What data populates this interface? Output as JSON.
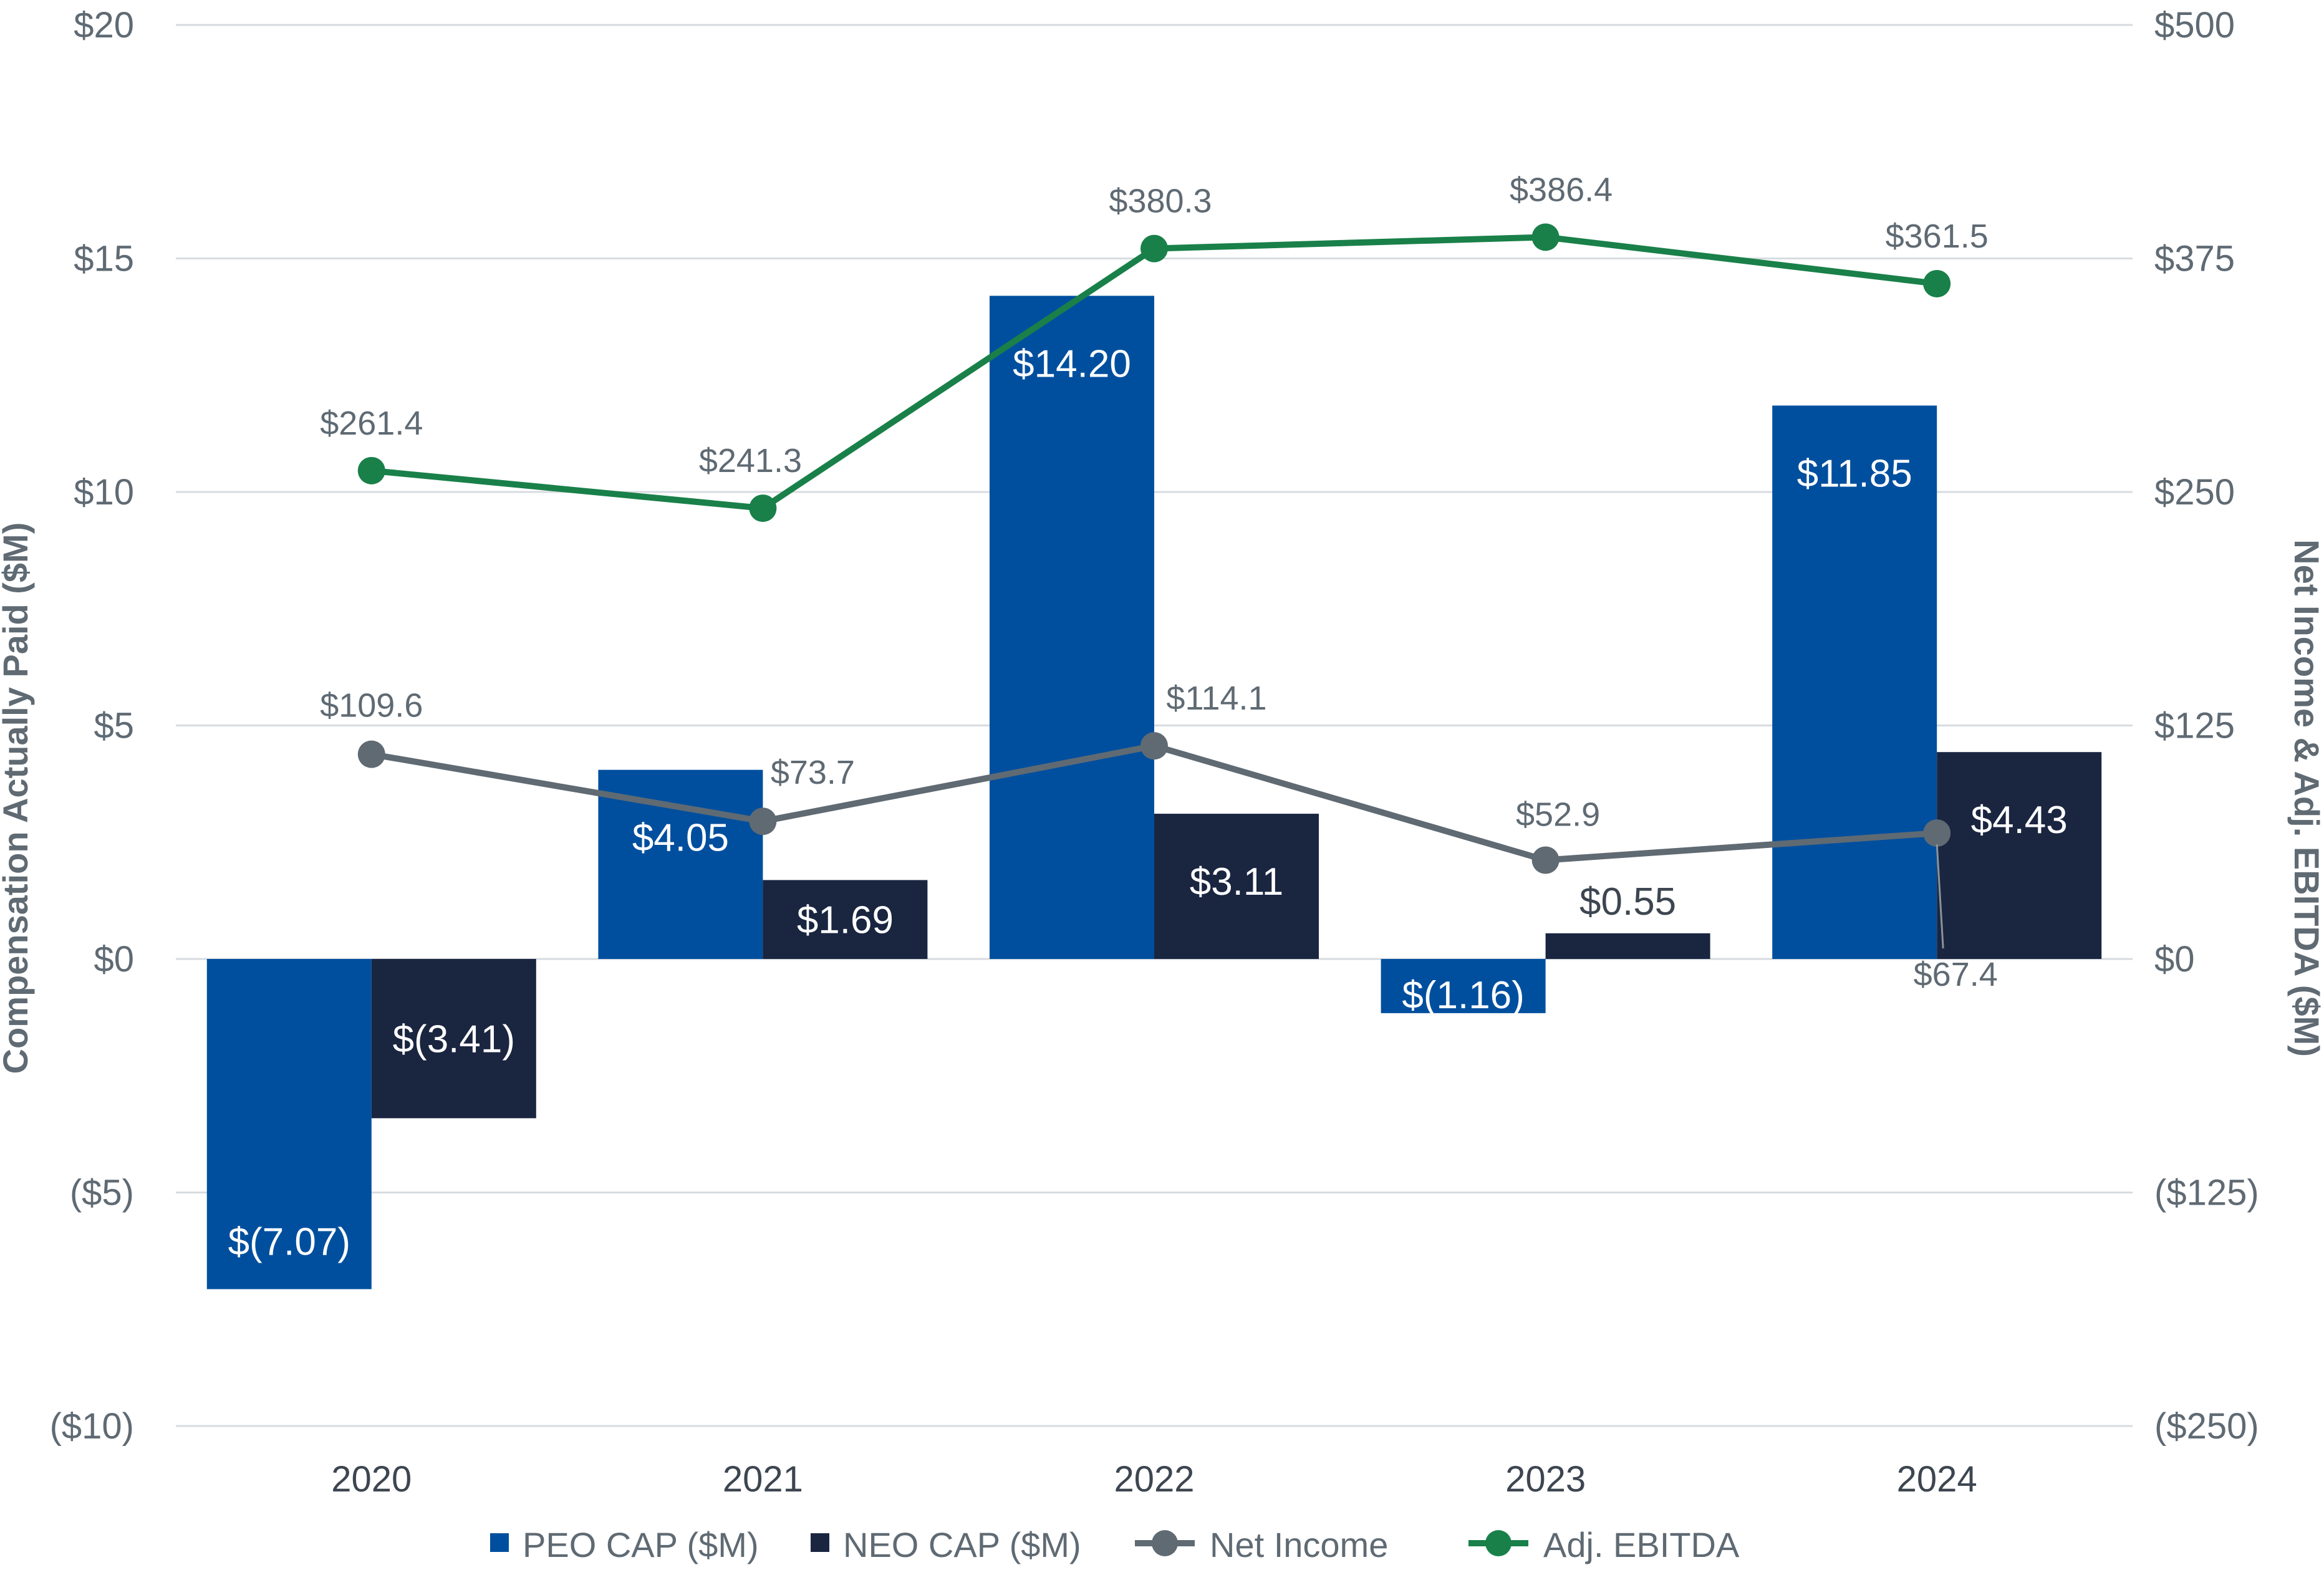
{
  "chart_data": {
    "type": "bar",
    "categories": [
      "2020",
      "2021",
      "2022",
      "2023",
      "2024"
    ],
    "y_left": {
      "label": "Compensation Actually Paid ($M)",
      "range": [
        -10,
        20
      ],
      "ticks": [
        20,
        15,
        10,
        5,
        0,
        -5,
        -10
      ],
      "tick_labels": [
        "$20",
        "$15",
        "$10",
        "$5",
        "$0",
        "($5)",
        "($10)"
      ]
    },
    "y_right": {
      "label": "Net Income & Adj. EBITDA ($M)",
      "range": [
        -250,
        500
      ],
      "ticks": [
        500,
        375,
        250,
        125,
        0,
        -125,
        -250
      ],
      "tick_labels": [
        "$500",
        "$375",
        "$250",
        "$125",
        "$0",
        "($125)",
        "($250)"
      ]
    },
    "grid": "horizontal",
    "legend_position": "bottom",
    "series": [
      {
        "name": "PEO CAP ($M)",
        "kind": "bar",
        "axis": "left",
        "color": "#004f9e",
        "values": [
          -7.07,
          4.05,
          14.2,
          -1.16,
          11.85
        ],
        "labels": [
          "$(7.07)",
          "$4.05",
          "$14.20",
          "$(1.16)",
          "$11.85"
        ]
      },
      {
        "name": "NEO CAP ($M)",
        "kind": "bar",
        "axis": "left",
        "color": "#1a2540",
        "values": [
          -3.41,
          1.69,
          3.11,
          0.55,
          4.43
        ],
        "labels": [
          "$(3.41)",
          "$1.69",
          "$3.11",
          "$0.55",
          "$4.43"
        ]
      },
      {
        "name": "Net Income",
        "kind": "line",
        "axis": "right",
        "color": "#5f6a73",
        "values": [
          109.6,
          73.7,
          114.1,
          52.9,
          67.4
        ],
        "labels": [
          "$109.6",
          "$73.7",
          "$114.1",
          "$52.9",
          "$67.4"
        ]
      },
      {
        "name": "Adj. EBITDA",
        "kind": "line",
        "axis": "right",
        "color": "#198049",
        "values": [
          261.4,
          241.3,
          380.3,
          386.4,
          361.5
        ],
        "labels": [
          "$261.4",
          "$241.3",
          "$380.3",
          "$386.4",
          "$361.5"
        ]
      }
    ]
  }
}
